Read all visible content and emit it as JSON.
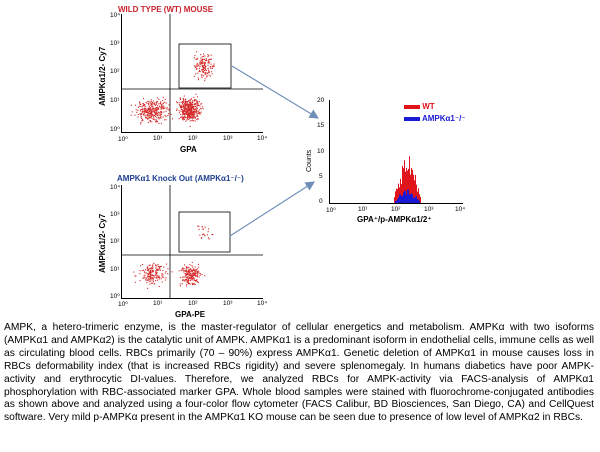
{
  "top_plot": {
    "title": "WILD TYPE (WT) MOUSE",
    "title_color": "#c8232c",
    "xlabel": "GPA",
    "ylabel": "AMPKα1/2- Cy7",
    "x_ticks": [
      "10⁰",
      "10¹",
      "10²",
      "10³",
      "10⁴"
    ],
    "y_ticks": [
      "10⁰",
      "10¹",
      "10²",
      "10³",
      "10⁴"
    ]
  },
  "bottom_plot": {
    "title": "AMPKα1 Knock Out (AMPKα1⁻/⁻)",
    "title_color": "#1f3f8f",
    "xlabel": "GPA-PE",
    "ylabel": "AMPKα1/2- Cy7",
    "x_ticks": [
      "10⁰",
      "10¹",
      "10²",
      "10³",
      "10⁴"
    ],
    "y_ticks": [
      "10⁰",
      "10¹",
      "10²",
      "10³",
      "10⁴"
    ]
  },
  "histogram": {
    "xlabel": "GPA⁺/p-AMPKα1/2⁺",
    "ylabel": "Counts",
    "y_ticks": [
      "0",
      "5",
      "10",
      "15",
      "20"
    ],
    "x_ticks": [
      "10⁰",
      "10¹",
      "10²",
      "10³",
      "10⁴"
    ],
    "legend_wt": "WT",
    "legend_ko": "AMPKα1⁻/⁻",
    "wt_color": "#e0141b",
    "ko_color": "#1a1ad6"
  },
  "arrow_color": "#6f8fb8",
  "dot_color": "#d42a2a",
  "description": "AMPK, a hetero-trimeric enzyme, is the master-regulator of cellular energetics and metabolism. AMPKα with two isoforms (AMPKα1 and AMPKα2) is the catalytic unit of AMPK. AMPKα1 is a predominant isoform in endothelial cells, immune cells as well as circulating blood cells. RBCs primarily (70 – 90%) express AMPKα1. Genetic deletion of AMPKα1 in mouse causes loss in RBCs deformability index (that is increased RBCs rigidity) and severe splenomegaly. In humans diabetics have poor AMPK-activity and erythrocytic DI-values. Therefore, we analyzed RBCs for AMPK-activity via FACS-analysis of AMPKα1 phosphorylation with RBC-associated marker GPA. Whole blood samples were stained with fluorochrome-conjugated antibodies as shown above and analyzed using a four-color flow cytometer (FACS Calibur, BD Biosciences, San Diego, CA) and CellQuest software. Very mild p-AMPKα present in the AMPKα1 KO mouse can be seen due to presence of low level of AMPKα2 in RBCs."
}
